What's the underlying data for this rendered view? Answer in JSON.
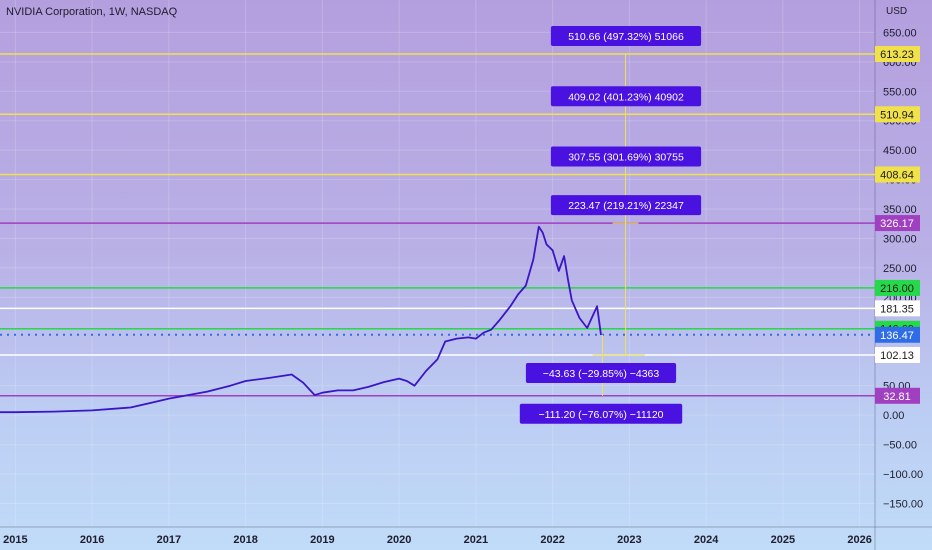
{
  "header": {
    "title": "NVIDIA Corporation, 1W, NASDAQ",
    "currency": "USD"
  },
  "colors": {
    "price_line": "#3a16c4",
    "yellow": "#f2e24a",
    "purple": "#a040c0",
    "green": "#26d94a",
    "white": "#ffffff",
    "blue": "#2f6de8",
    "label_box": "#4a12e0"
  },
  "chart_data": {
    "type": "line",
    "title": "NVIDIA Corporation, 1W, NASDAQ",
    "x_ticks": [
      "2015",
      "2016",
      "2017",
      "2018",
      "2019",
      "2020",
      "2021",
      "2022",
      "2023",
      "2024",
      "2025",
      "2026"
    ],
    "x_tick_values": [
      2015,
      2016,
      2017,
      2018,
      2019,
      2020,
      2021,
      2022,
      2023,
      2024,
      2025,
      2026
    ],
    "xlim": [
      2014.8,
      2026.2
    ],
    "y_ticks": [
      "650.00",
      "600.00",
      "550.00",
      "500.00",
      "450.00",
      "400.00",
      "350.00",
      "300.00",
      "250.00",
      "200.00",
      "50.00",
      "0.00",
      "−50.00",
      "−100.00",
      "−150.00"
    ],
    "y_tick_values": [
      650,
      600,
      550,
      500,
      450,
      400,
      350,
      300,
      250,
      200,
      50,
      0,
      -50,
      -100,
      -150
    ],
    "ylim": [
      -190,
      705
    ],
    "series": [
      {
        "x": [
          2014.8,
          2015.0,
          2015.5,
          2016.0,
          2016.5,
          2016.8,
          2017.0,
          2017.5,
          2017.8,
          2018.0,
          2018.3,
          2018.6,
          2018.75,
          2018.9,
          2019.0,
          2019.2,
          2019.4,
          2019.6,
          2019.8,
          2020.0,
          2020.1,
          2020.2,
          2020.35,
          2020.5,
          2020.6,
          2020.75,
          2020.9,
          2021.0,
          2021.1,
          2021.2,
          2021.3,
          2021.45,
          2021.55,
          2021.65,
          2021.75,
          2021.82,
          2021.87,
          2021.92,
          2022.0,
          2022.08,
          2022.15,
          2022.2,
          2022.25,
          2022.35,
          2022.45,
          2022.52,
          2022.58,
          2022.63
        ],
        "y": [
          5,
          5,
          6,
          8,
          13,
          22,
          28,
          40,
          50,
          58,
          63,
          69,
          55,
          34,
          38,
          42,
          42,
          48,
          56,
          62,
          58,
          50,
          75,
          95,
          125,
          130,
          132,
          130,
          140,
          145,
          160,
          185,
          205,
          220,
          265,
          320,
          310,
          290,
          280,
          245,
          270,
          230,
          195,
          165,
          148,
          168,
          185,
          136
        ]
      }
    ],
    "horizontal_levels": [
      {
        "value": 613.23,
        "label": "613.23",
        "color": "yellow"
      },
      {
        "value": 510.94,
        "label": "510.94",
        "color": "yellow"
      },
      {
        "value": 408.64,
        "label": "408.64",
        "color": "yellow"
      },
      {
        "value": 326.17,
        "label": "326.17",
        "color": "purple"
      },
      {
        "value": 216.0,
        "label": "216.00",
        "color": "green"
      },
      {
        "value": 181.35,
        "label": "181.35",
        "color": "white"
      },
      {
        "value": 146.69,
        "label": "146.69",
        "color": "green"
      },
      {
        "value": 136.47,
        "label": "136.47",
        "color": "blue",
        "dotted": true
      },
      {
        "value": 102.13,
        "label": "102.13",
        "color": "white"
      },
      {
        "value": 32.81,
        "label": "32.81",
        "color": "purple"
      }
    ],
    "measure_labels": [
      {
        "text": "510.66 (497.32%) 51066",
        "value": 613.23
      },
      {
        "text": "409.02 (401.23%) 40902",
        "value": 510.94
      },
      {
        "text": "307.55 (301.69%) 30755",
        "value": 408.64
      },
      {
        "text": "223.47 (219.21%) 22347",
        "value": 326.17
      },
      {
        "text": "−43.63 (−29.85%) −4363",
        "value": 102.13
      },
      {
        "text": "−111.20 (−76.07%) −11120",
        "value": 32.81
      }
    ],
    "grid": true
  }
}
